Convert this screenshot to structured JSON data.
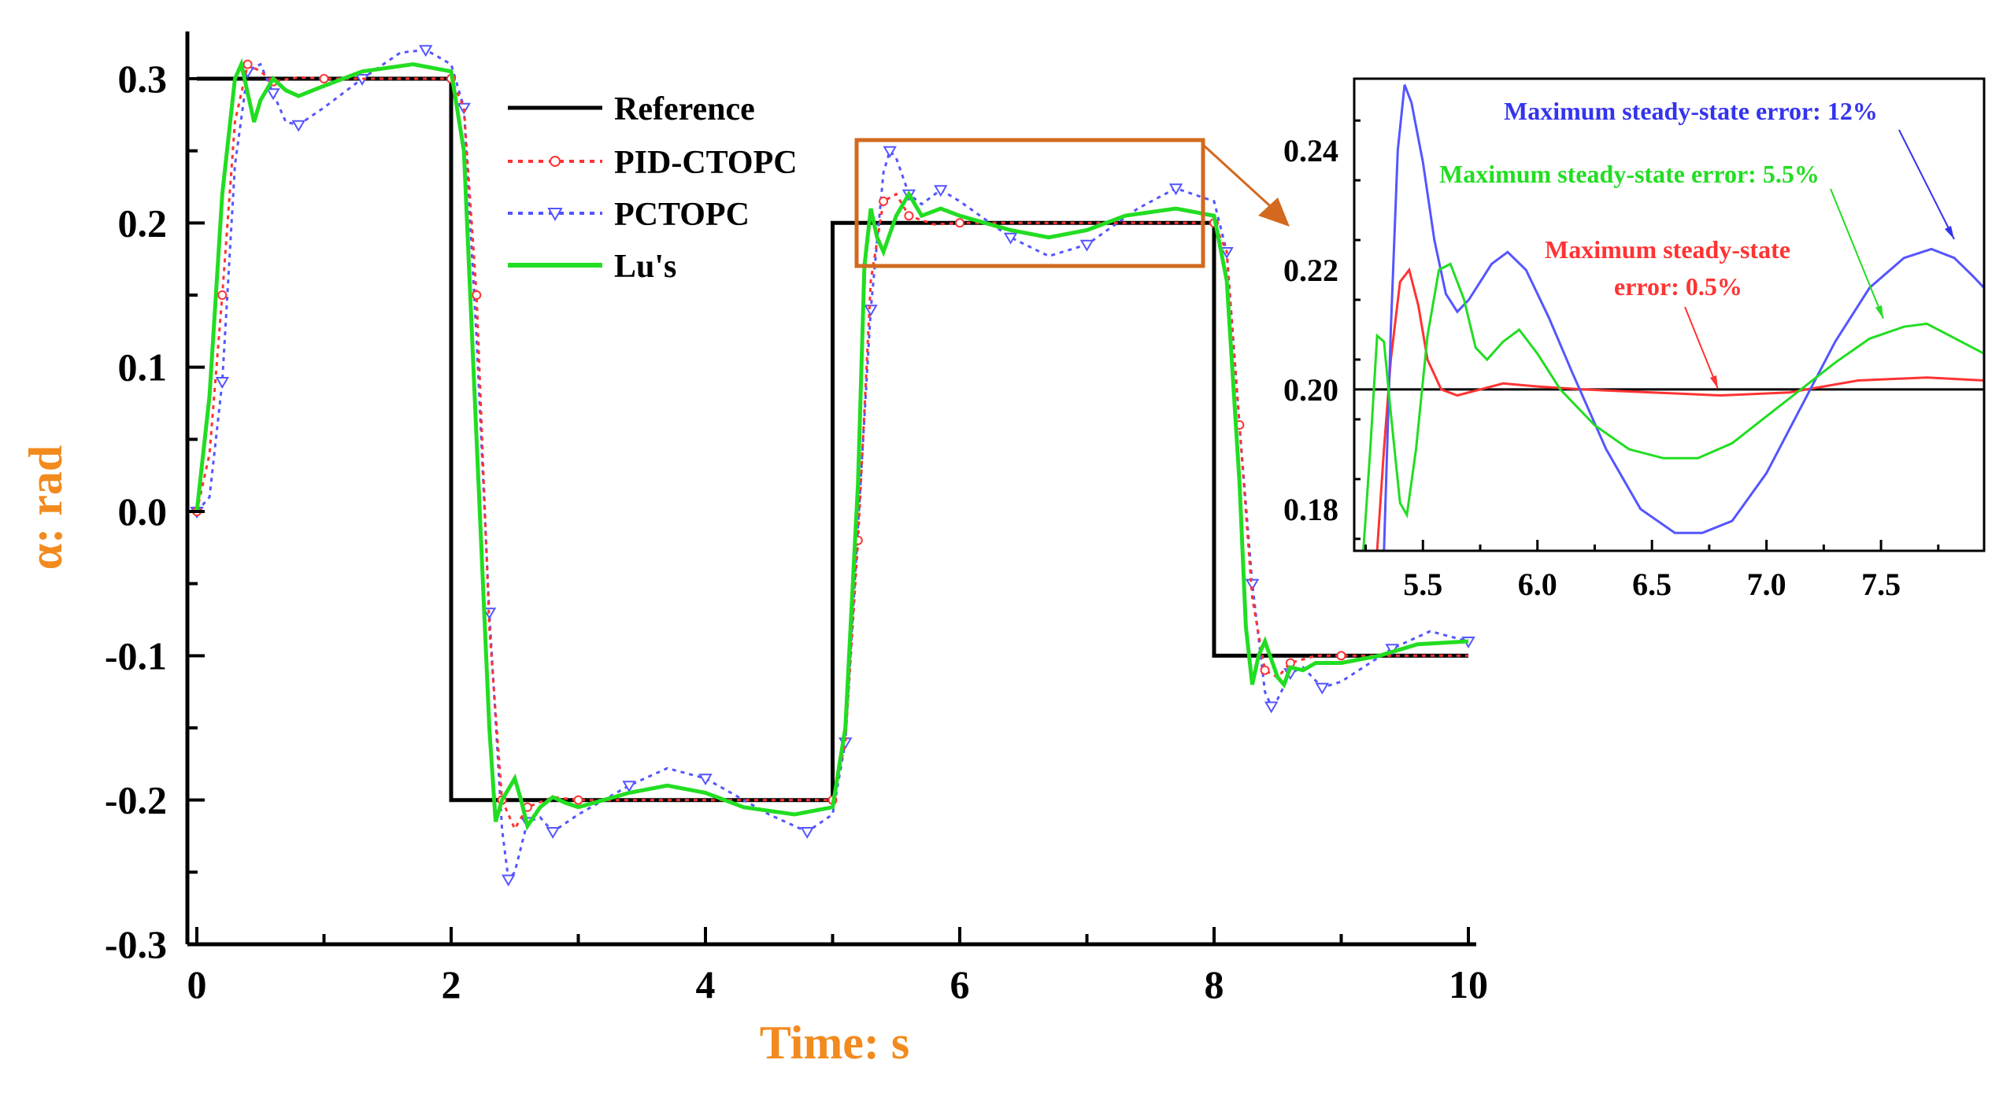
{
  "chart_data": [
    {
      "type": "line",
      "title": "",
      "xlabel": "Time: s",
      "ylabel": "α: rad",
      "xlim": [
        0,
        10
      ],
      "ylim": [
        -0.3,
        0.3
      ],
      "xticks": [
        "0",
        "2",
        "4",
        "6",
        "8",
        "10"
      ],
      "yticks": [
        "-0.3",
        "-0.2",
        "-0.1",
        "0.0",
        "0.1",
        "0.2",
        "0.3"
      ],
      "legend_position": "top-center",
      "grid": false,
      "series": [
        {
          "name": "Reference",
          "color": "#000000",
          "style": "solid",
          "x": [
            0,
            2,
            2,
            5,
            5,
            8,
            8,
            10
          ],
          "y": [
            0.3,
            0.3,
            -0.2,
            -0.2,
            0.2,
            0.2,
            -0.1,
            -0.1
          ]
        },
        {
          "name": "PID-CTOPC",
          "color": "#ff3333",
          "style": "dotted-circle",
          "x": [
            0,
            0.1,
            0.2,
            0.3,
            0.4,
            0.5,
            0.6,
            0.8,
            1.0,
            1.5,
            2.0,
            2.1,
            2.2,
            2.3,
            2.4,
            2.5,
            2.6,
            2.8,
            3.0,
            4.0,
            5.0,
            5.1,
            5.2,
            5.3,
            5.4,
            5.5,
            5.6,
            5.8,
            6.0,
            7.0,
            8.0,
            8.1,
            8.2,
            8.3,
            8.4,
            8.5,
            8.6,
            8.8,
            9.0,
            10.0
          ],
          "y": [
            0.0,
            0.04,
            0.15,
            0.27,
            0.31,
            0.305,
            0.298,
            0.301,
            0.3,
            0.3,
            0.3,
            0.28,
            0.15,
            -0.08,
            -0.2,
            -0.22,
            -0.205,
            -0.198,
            -0.2,
            -0.2,
            -0.2,
            -0.16,
            -0.02,
            0.16,
            0.215,
            0.22,
            0.205,
            0.199,
            0.2,
            0.2,
            0.2,
            0.18,
            0.06,
            -0.06,
            -0.11,
            -0.115,
            -0.105,
            -0.1,
            -0.1,
            -0.1
          ]
        },
        {
          "name": "PCTOPC",
          "color": "#5555ff",
          "style": "dotted-triangle",
          "x": [
            0,
            0.1,
            0.2,
            0.3,
            0.4,
            0.5,
            0.6,
            0.7,
            0.8,
            1.0,
            1.3,
            1.6,
            1.8,
            2.0,
            2.1,
            2.2,
            2.3,
            2.4,
            2.45,
            2.5,
            2.6,
            2.7,
            2.8,
            3.0,
            3.4,
            3.7,
            4.0,
            4.5,
            4.8,
            5.0,
            5.1,
            5.2,
            5.3,
            5.4,
            5.45,
            5.5,
            5.6,
            5.7,
            5.85,
            6.0,
            6.4,
            6.7,
            7.0,
            7.4,
            7.7,
            8.0,
            8.1,
            8.2,
            8.3,
            8.4,
            8.45,
            8.5,
            8.6,
            8.7,
            8.85,
            9.0,
            9.4,
            9.7,
            10.0
          ],
          "y": [
            0.0,
            0.01,
            0.09,
            0.24,
            0.305,
            0.31,
            0.29,
            0.27,
            0.268,
            0.28,
            0.3,
            0.318,
            0.32,
            0.31,
            0.28,
            0.12,
            -0.07,
            -0.22,
            -0.255,
            -0.25,
            -0.215,
            -0.212,
            -0.222,
            -0.21,
            -0.19,
            -0.178,
            -0.185,
            -0.21,
            -0.222,
            -0.21,
            -0.16,
            -0.01,
            0.14,
            0.235,
            0.25,
            0.245,
            0.22,
            0.213,
            0.223,
            0.215,
            0.19,
            0.177,
            0.185,
            0.21,
            0.224,
            0.215,
            0.18,
            0.06,
            -0.05,
            -0.125,
            -0.135,
            -0.13,
            -0.112,
            -0.108,
            -0.122,
            -0.118,
            -0.095,
            -0.083,
            -0.09
          ]
        },
        {
          "name": "Lu's",
          "color": "#22dd22",
          "style": "solid",
          "x": [
            0,
            0.1,
            0.2,
            0.3,
            0.35,
            0.4,
            0.45,
            0.5,
            0.6,
            0.7,
            0.8,
            1.0,
            1.3,
            1.7,
            2.0,
            2.1,
            2.2,
            2.3,
            2.35,
            2.4,
            2.5,
            2.55,
            2.6,
            2.7,
            2.8,
            2.9,
            3.0,
            3.4,
            3.7,
            4.0,
            4.3,
            4.7,
            5.0,
            5.1,
            5.2,
            5.25,
            5.3,
            5.35,
            5.4,
            5.5,
            5.6,
            5.7,
            5.85,
            6.0,
            6.4,
            6.7,
            7.0,
            7.3,
            7.7,
            8.0,
            8.1,
            8.2,
            8.25,
            8.3,
            8.35,
            8.4,
            8.5,
            8.55,
            8.6,
            8.7,
            8.8,
            9.0,
            9.3,
            9.6,
            10.0
          ],
          "y": [
            0.0,
            0.08,
            0.22,
            0.3,
            0.31,
            0.29,
            0.27,
            0.285,
            0.3,
            0.292,
            0.288,
            0.295,
            0.305,
            0.31,
            0.305,
            0.25,
            0.05,
            -0.15,
            -0.215,
            -0.2,
            -0.185,
            -0.2,
            -0.218,
            -0.205,
            -0.198,
            -0.202,
            -0.205,
            -0.195,
            -0.19,
            -0.195,
            -0.205,
            -0.21,
            -0.205,
            -0.15,
            0.02,
            0.17,
            0.21,
            0.19,
            0.18,
            0.205,
            0.22,
            0.205,
            0.21,
            0.205,
            0.195,
            0.19,
            0.195,
            0.205,
            0.21,
            0.205,
            0.16,
            0.02,
            -0.08,
            -0.12,
            -0.1,
            -0.09,
            -0.115,
            -0.12,
            -0.108,
            -0.11,
            -0.105,
            -0.105,
            -0.1,
            -0.092,
            -0.09
          ]
        }
      ]
    },
    {
      "type": "line",
      "title": "",
      "xlabel": "",
      "ylabel": "",
      "xlim": [
        5.2,
        7.95
      ],
      "ylim": [
        0.173,
        0.252
      ],
      "xticks": [
        "5.5",
        "6.0",
        "6.5",
        "7.0",
        "7.5"
      ],
      "yticks": [
        "0.18",
        "0.20",
        "0.22",
        "0.24"
      ],
      "grid": false,
      "annotations": [
        {
          "text": "Maximum steady-state error: 12%",
          "color": "#3333ee"
        },
        {
          "text": "Maximum steady-state error: 5.5%",
          "color": "#22dd22"
        },
        {
          "text": "Maximum steady-state",
          "color": "#ff3333"
        },
        {
          "text": "error: 0.5%",
          "color": "#ff3333"
        }
      ],
      "series": [
        {
          "name": "Reference",
          "color": "#000000",
          "x": [
            5.2,
            7.95
          ],
          "y": [
            0.2,
            0.2
          ]
        },
        {
          "name": "PID-CTOPC",
          "color": "#ff3333",
          "x": [
            5.3,
            5.33,
            5.36,
            5.4,
            5.44,
            5.48,
            5.52,
            5.58,
            5.65,
            5.75,
            5.85,
            6.0,
            6.2,
            6.5,
            6.8,
            7.1,
            7.4,
            7.7,
            7.95
          ],
          "y": [
            0.173,
            0.19,
            0.205,
            0.218,
            0.22,
            0.214,
            0.205,
            0.2,
            0.199,
            0.2,
            0.201,
            0.2005,
            0.2,
            0.1995,
            0.199,
            0.1995,
            0.2015,
            0.202,
            0.2015
          ]
        },
        {
          "name": "PCTOPC",
          "color": "#5555ff",
          "x": [
            5.33,
            5.36,
            5.39,
            5.42,
            5.45,
            5.5,
            5.55,
            5.6,
            5.65,
            5.7,
            5.8,
            5.87,
            5.95,
            6.05,
            6.15,
            6.3,
            6.45,
            6.6,
            6.72,
            6.85,
            7.0,
            7.15,
            7.3,
            7.45,
            7.6,
            7.72,
            7.82,
            7.9,
            7.95
          ],
          "y": [
            0.173,
            0.21,
            0.24,
            0.251,
            0.248,
            0.238,
            0.225,
            0.216,
            0.213,
            0.215,
            0.221,
            0.223,
            0.22,
            0.212,
            0.203,
            0.19,
            0.18,
            0.176,
            0.176,
            0.178,
            0.186,
            0.197,
            0.208,
            0.217,
            0.222,
            0.2235,
            0.222,
            0.219,
            0.217
          ]
        },
        {
          "name": "Lu's",
          "color": "#22dd22",
          "x": [
            5.24,
            5.27,
            5.3,
            5.33,
            5.36,
            5.4,
            5.43,
            5.47,
            5.52,
            5.57,
            5.62,
            5.68,
            5.73,
            5.78,
            5.85,
            5.92,
            6.0,
            6.1,
            6.25,
            6.4,
            6.55,
            6.7,
            6.85,
            7.0,
            7.15,
            7.3,
            7.45,
            7.6,
            7.7,
            7.8,
            7.9,
            7.95
          ],
          "y": [
            0.173,
            0.19,
            0.209,
            0.208,
            0.196,
            0.181,
            0.179,
            0.19,
            0.209,
            0.22,
            0.221,
            0.215,
            0.207,
            0.205,
            0.208,
            0.21,
            0.206,
            0.2,
            0.194,
            0.19,
            0.1885,
            0.1885,
            0.191,
            0.1955,
            0.2,
            0.2045,
            0.2085,
            0.2105,
            0.211,
            0.209,
            0.207,
            0.206
          ]
        }
      ]
    }
  ]
}
